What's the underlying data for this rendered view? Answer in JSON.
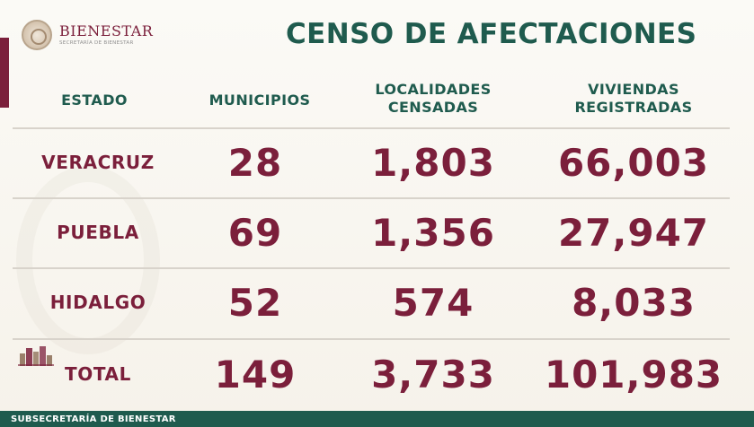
{
  "brand": {
    "name": "BIENESTAR",
    "subtitle": "SECRETARÍA DE BIENESTAR"
  },
  "title": "CENSO DE AFECTACIONES",
  "table": {
    "headers": {
      "estado": "ESTADO",
      "municipios": "MUNICIPIOS",
      "localidades": "LOCALIDADES\nCENSADAS",
      "viviendas": "VIVIENDAS\nREGISTRADAS"
    },
    "rows": [
      {
        "estado": "VERACRUZ",
        "municipios": "28",
        "localidades": "1,803",
        "viviendas": "66,003"
      },
      {
        "estado": "PUEBLA",
        "municipios": "69",
        "localidades": "1,356",
        "viviendas": "27,947"
      },
      {
        "estado": "HIDALGO",
        "municipios": "52",
        "localidades": "574",
        "viviendas": "8,033"
      }
    ],
    "total": {
      "estado": "TOTAL",
      "municipios": "149",
      "localidades": "3,733",
      "viviendas": "101,983"
    }
  },
  "footer": {
    "label": "SUBSECRETARÍA DE BIENESTAR"
  },
  "colors": {
    "accent_maroon": "#7b1f3b",
    "accent_green": "#1f5b4e",
    "background": "#f6f2ea"
  },
  "icons": {
    "logo": "seal-icon",
    "total": "city-skyline-icon"
  }
}
